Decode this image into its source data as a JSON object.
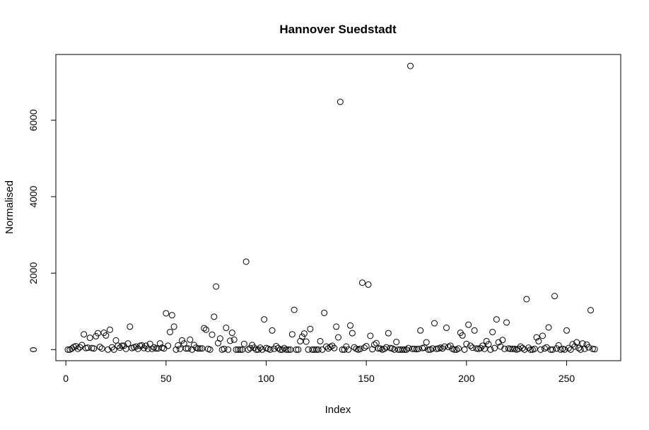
{
  "chart_data": {
    "type": "scatter",
    "title": "Hannover Suedstadt",
    "xlabel": "Index",
    "ylabel": "Normalised",
    "xlim": [
      -5,
      277
    ],
    "ylim": [
      -290,
      7720
    ],
    "xticks": [
      0,
      50,
      100,
      150,
      200,
      250
    ],
    "yticks": [
      0,
      2000,
      4000,
      6000
    ],
    "xtick_labels": [
      "0",
      "50",
      "100",
      "150",
      "200",
      "250"
    ],
    "ytick_labels": [
      "0",
      "2000",
      "4000",
      "6000"
    ],
    "grid": false,
    "marker": "open-circle",
    "y": [
      0,
      0,
      30,
      70,
      90,
      20,
      60,
      120,
      400,
      40,
      50,
      310,
      40,
      30,
      350,
      430,
      70,
      30,
      440,
      370,
      0,
      520,
      60,
      0,
      240,
      100,
      50,
      100,
      100,
      20,
      160,
      600,
      40,
      60,
      80,
      20,
      100,
      110,
      40,
      100,
      20,
      150,
      20,
      60,
      30,
      30,
      160,
      50,
      30,
      950,
      100,
      460,
      900,
      600,
      0,
      110,
      20,
      240,
      160,
      30,
      30,
      260,
      0,
      120,
      50,
      30,
      30,
      30,
      560,
      520,
      20,
      0,
      390,
      860,
      1650,
      170,
      290,
      0,
      20,
      570,
      0,
      230,
      440,
      260,
      0,
      0,
      0,
      0,
      150,
      2300,
      0,
      40,
      120,
      50,
      0,
      0,
      50,
      0,
      790,
      40,
      20,
      0,
      500,
      20,
      90,
      40,
      0,
      0,
      40,
      0,
      0,
      0,
      400,
      1040,
      0,
      0,
      220,
      340,
      420,
      210,
      0,
      540,
      0,
      0,
      0,
      0,
      220,
      0,
      960,
      80,
      30,
      70,
      100,
      40,
      600,
      320,
      6480,
      0,
      0,
      80,
      0,
      630,
      430,
      60,
      20,
      0,
      20,
      1750,
      50,
      90,
      1700,
      360,
      10,
      130,
      170,
      30,
      30,
      0,
      20,
      60,
      430,
      40,
      30,
      0,
      200,
      0,
      0,
      0,
      0,
      0,
      40,
      7420,
      20,
      20,
      10,
      20,
      500,
      40,
      50,
      190,
      0,
      0,
      30,
      690,
      20,
      30,
      50,
      30,
      80,
      570,
      70,
      100,
      20,
      0,
      0,
      30,
      440,
      370,
      0,
      150,
      650,
      100,
      50,
      500,
      30,
      20,
      40,
      100,
      20,
      220,
      140,
      0,
      460,
      40,
      790,
      190,
      80,
      250,
      20,
      710,
      30,
      20,
      20,
      20,
      0,
      20,
      80,
      40,
      0,
      1320,
      50,
      0,
      0,
      20,
      320,
      220,
      0,
      360,
      30,
      60,
      580,
      0,
      0,
      1400,
      30,
      110,
      0,
      20,
      0,
      500,
      40,
      0,
      140,
      80,
      190,
      40,
      0,
      160,
      20,
      130,
      60,
      1030,
      20,
      10
    ]
  }
}
